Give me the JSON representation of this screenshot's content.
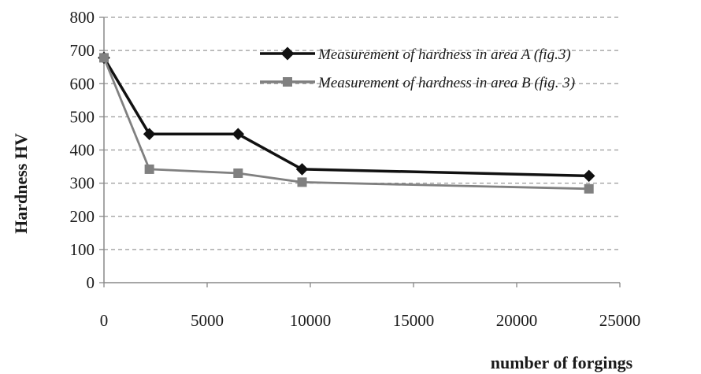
{
  "chart_data": {
    "type": "line",
    "title": "",
    "xlabel": "number of forgings",
    "ylabel": "Hardness HV",
    "xlim": [
      0,
      25000
    ],
    "ylim": [
      0,
      800
    ],
    "x_ticks": [
      "0",
      "5000",
      "10000",
      "15000",
      "20000",
      "25000"
    ],
    "y_ticks": [
      "0",
      "100",
      "200",
      "300",
      "400",
      "500",
      "600",
      "700",
      "800"
    ],
    "grid": "horizontal dashed",
    "legend_position": "top-right",
    "series": [
      {
        "name": "Measurement of hardness in area A (fig.3)",
        "marker": "diamond",
        "color": "#111111",
        "x": [
          0,
          2200,
          6500,
          9600,
          23500
        ],
        "y": [
          678,
          448,
          448,
          342,
          322
        ]
      },
      {
        "name": "Measurement of hardness in area B (fig. 3)",
        "marker": "square",
        "color": "#808080",
        "x": [
          0,
          2200,
          6500,
          9600,
          23500
        ],
        "y": [
          678,
          342,
          330,
          303,
          283
        ]
      }
    ]
  }
}
